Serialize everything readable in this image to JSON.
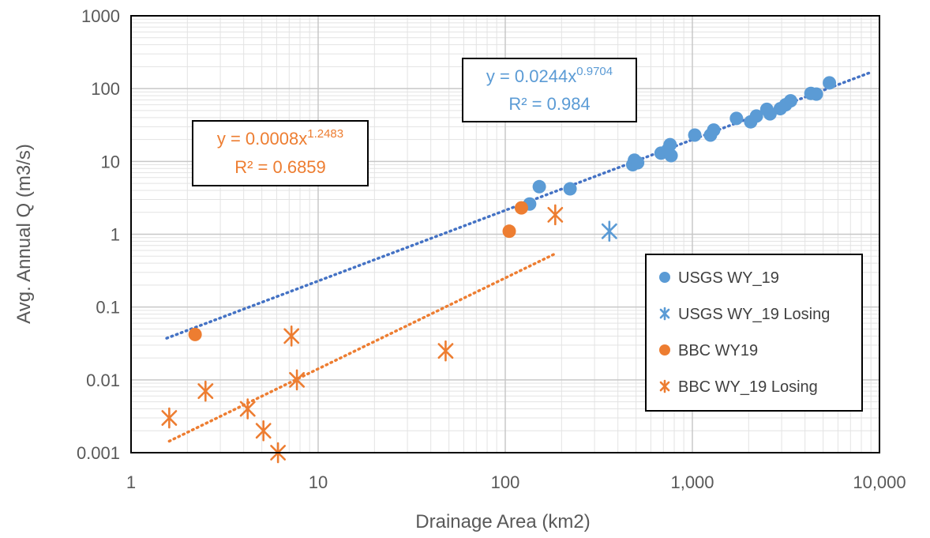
{
  "chart_data": {
    "type": "scatter",
    "xlabel": "Drainage Area (km2)",
    "ylabel": "Avg. Annual Q (m3/s)",
    "x_scale": "log",
    "y_scale": "log",
    "xlim": [
      1,
      10000
    ],
    "ylim": [
      0.001,
      1000
    ],
    "x_ticks": [
      "1",
      "10",
      "100",
      "1,000",
      "10,000"
    ],
    "y_ticks": [
      "0.001",
      "0.01",
      "0.1",
      "1",
      "10",
      "100",
      "1000"
    ],
    "grid": true,
    "legend_position": "bottom-right",
    "series": [
      {
        "name": "USGS WY_19",
        "marker": "circle",
        "color": "#5B9BD5",
        "points": [
          [
            135,
            2.6
          ],
          [
            152,
            4.5
          ],
          [
            222,
            4.2
          ],
          [
            480,
            9.0
          ],
          [
            490,
            10.4
          ],
          [
            510,
            9.6
          ],
          [
            680,
            13.0
          ],
          [
            740,
            14.5
          ],
          [
            760,
            17.0
          ],
          [
            770,
            12.0
          ],
          [
            1030,
            23.0
          ],
          [
            1250,
            23.0
          ],
          [
            1300,
            27.0
          ],
          [
            1720,
            39.0
          ],
          [
            2050,
            35.0
          ],
          [
            2200,
            42.0
          ],
          [
            2500,
            52.0
          ],
          [
            2600,
            45.0
          ],
          [
            2950,
            53.0
          ],
          [
            3150,
            60.0
          ],
          [
            3350,
            68.0
          ],
          [
            4300,
            86.0
          ],
          [
            4600,
            84.0
          ],
          [
            5400,
            120.0
          ]
        ]
      },
      {
        "name": "USGS WY_19 Losing",
        "marker": "asterisk",
        "color": "#5B9BD5",
        "points": [
          [
            360,
            1.1
          ]
        ]
      },
      {
        "name": "BBC WY19",
        "marker": "circle",
        "color": "#ED7D31",
        "points": [
          [
            2.2,
            0.042
          ],
          [
            105,
            1.1
          ],
          [
            122,
            2.3
          ]
        ]
      },
      {
        "name": "BBC WY_19 Losing",
        "marker": "asterisk",
        "color": "#ED7D31",
        "points": [
          [
            1.6,
            0.003
          ],
          [
            2.5,
            0.007
          ],
          [
            4.2,
            0.004
          ],
          [
            5.1,
            0.002
          ],
          [
            6.1,
            0.001
          ],
          [
            7.2,
            0.04
          ],
          [
            7.7,
            0.01
          ],
          [
            48,
            0.025
          ],
          [
            185,
            1.85
          ]
        ]
      }
    ],
    "trendlines": [
      {
        "series": "USGS WY_19",
        "color": "#4472C4",
        "style": "dotted",
        "coefficient": 0.0244,
        "exponent": 0.9704,
        "x_range": [
          1.55,
          9000
        ]
      },
      {
        "series": "BBC WY19",
        "color": "#ED7D31",
        "style": "dotted",
        "coefficient": 0.0008,
        "exponent": 1.2483,
        "x_range": [
          1.6,
          185
        ]
      }
    ],
    "annotations": [
      {
        "series": "USGS WY_19",
        "color": "#5B9BD5",
        "eq_prefix": "y = 0.0244x",
        "eq_exponent": "0.9704",
        "r2": "R² = 0.984"
      },
      {
        "series": "BBC WY19",
        "color": "#ED7D31",
        "eq_prefix": "y = 0.0008x",
        "eq_exponent": "1.2483",
        "r2": "R² = 0.6859"
      }
    ]
  }
}
